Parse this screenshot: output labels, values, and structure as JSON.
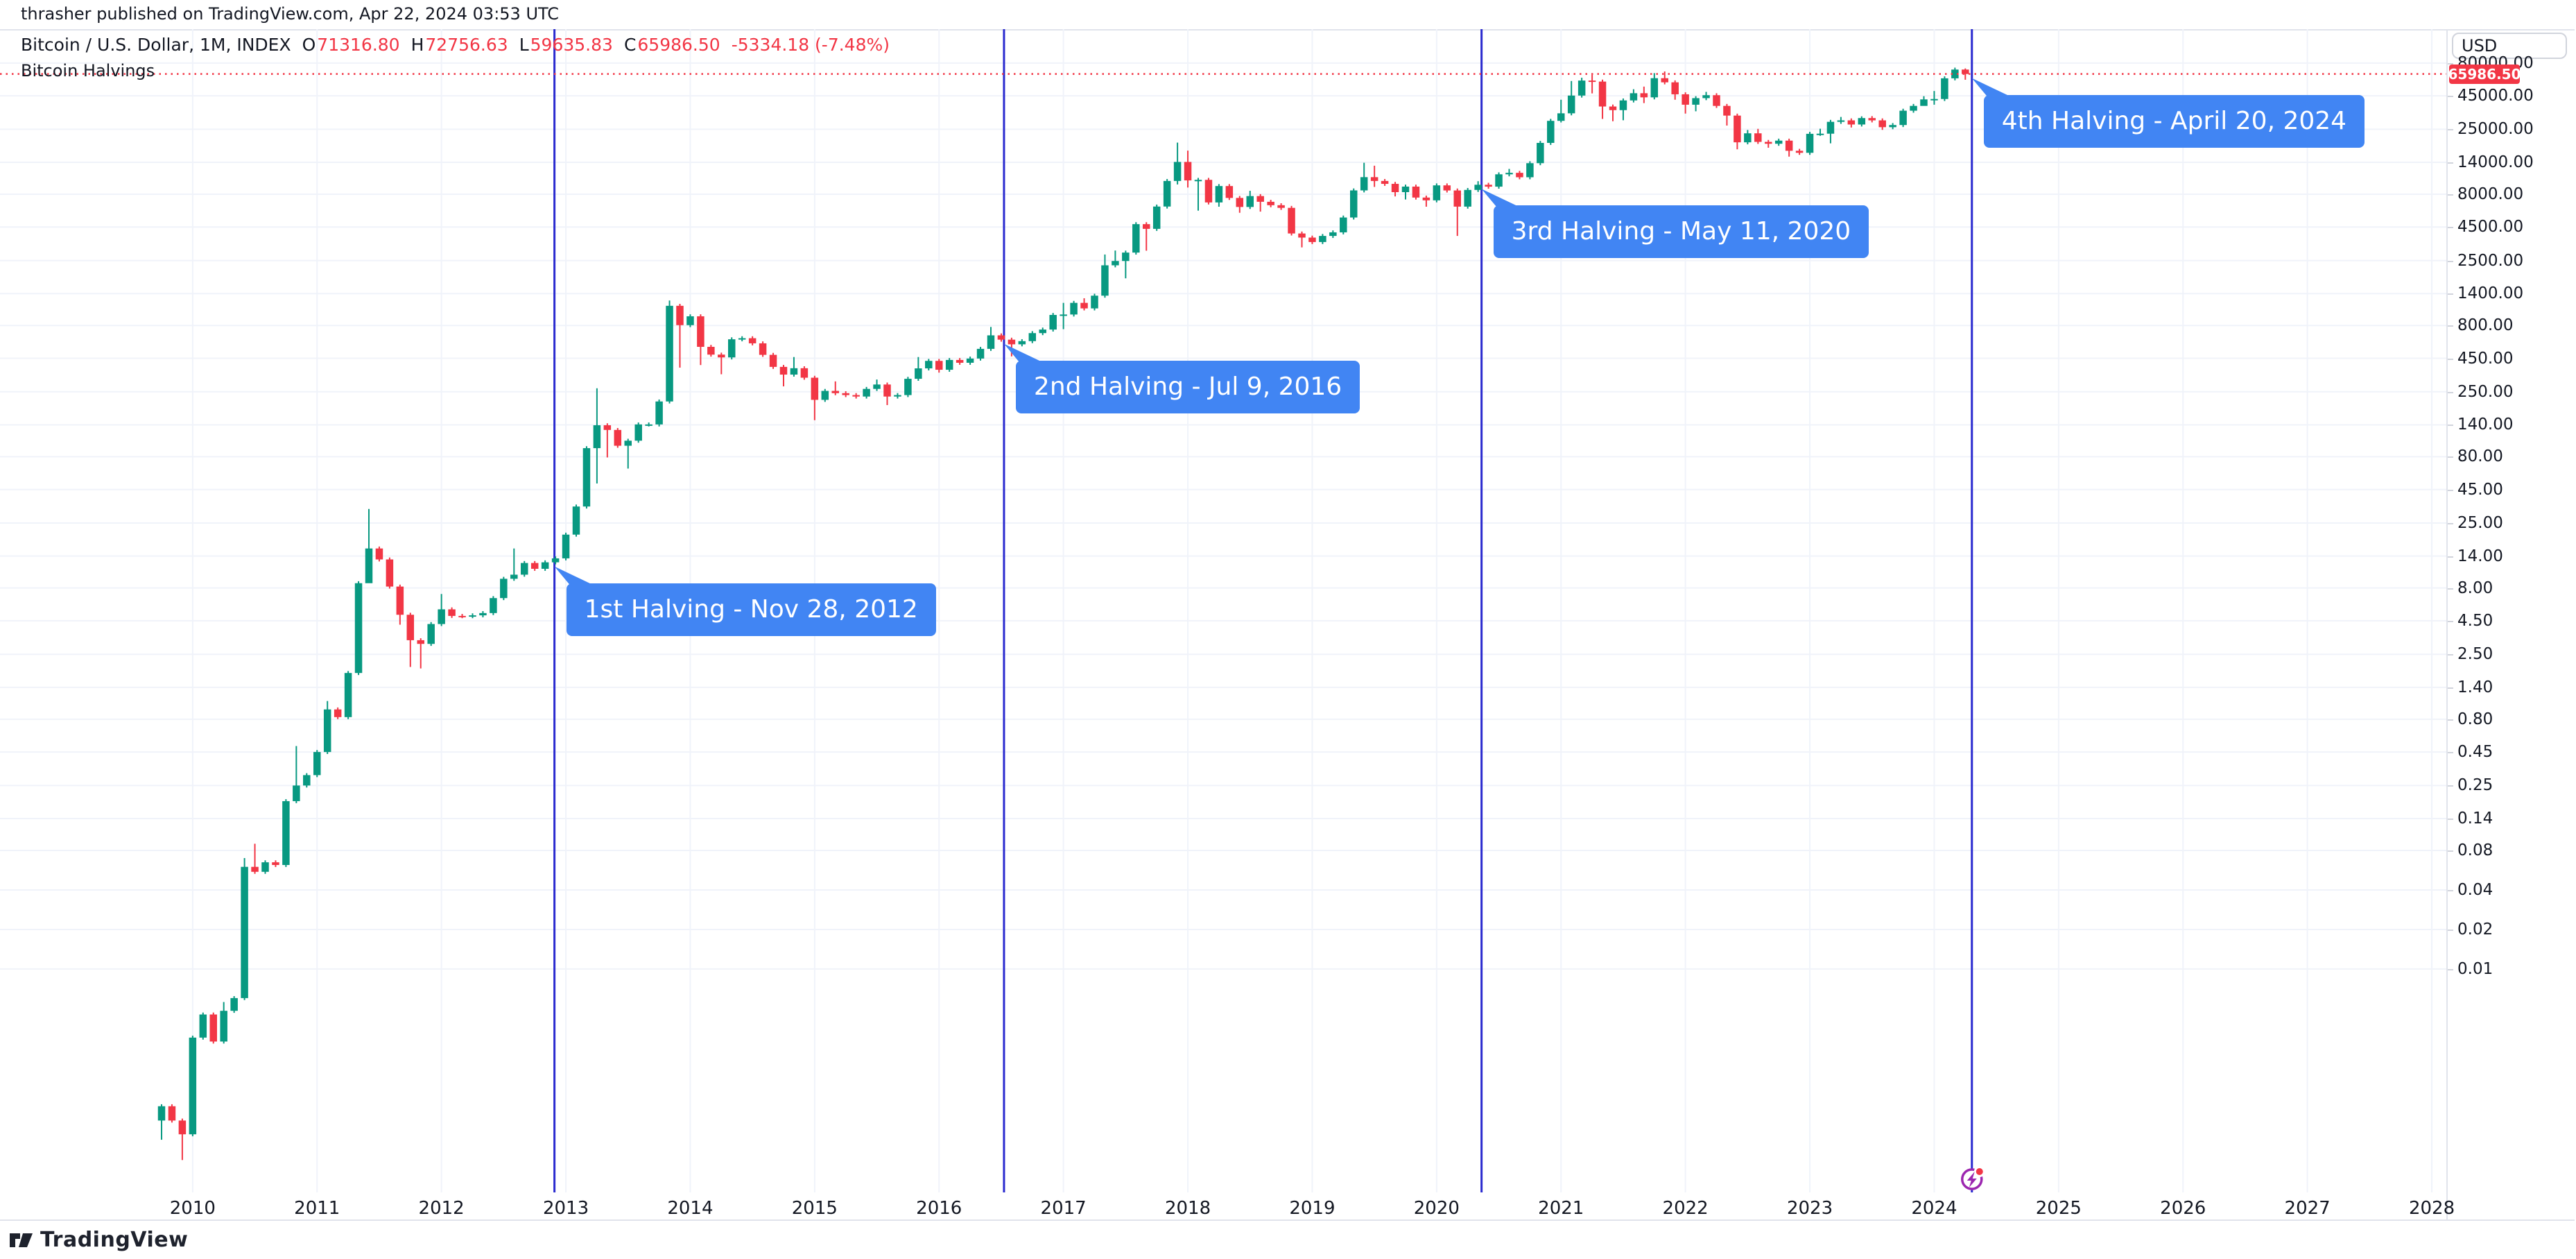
{
  "header": {
    "published_line": "thrasher published on TradingView.com, Apr 22, 2024 03:53 UTC",
    "symbol_title": "Bitcoin / U.S. Dollar, 1M, INDEX",
    "ohlc": {
      "open_label": "O",
      "open": "71316.80",
      "high_label": "H",
      "high": "72756.63",
      "low_label": "L",
      "low": "59635.83",
      "close_label": "C",
      "close": "65986.50",
      "change": "-5334.18 (-7.48%)"
    },
    "indicator_label": "Bitcoin Halvings"
  },
  "price_axis": {
    "currency_button": "USD",
    "last_price_label": "65986.50",
    "ticks": [
      {
        "label": "80000.00",
        "value": 80000
      },
      {
        "label": "45000.00",
        "value": 45000
      },
      {
        "label": "25000.00",
        "value": 25000
      },
      {
        "label": "14000.00",
        "value": 14000
      },
      {
        "label": "8000.00",
        "value": 8000
      },
      {
        "label": "4500.00",
        "value": 4500
      },
      {
        "label": "2500.00",
        "value": 2500
      },
      {
        "label": "1400.00",
        "value": 1400
      },
      {
        "label": "800.00",
        "value": 800
      },
      {
        "label": "450.00",
        "value": 450
      },
      {
        "label": "250.00",
        "value": 250
      },
      {
        "label": "140.00",
        "value": 140
      },
      {
        "label": "80.00",
        "value": 80
      },
      {
        "label": "45.00",
        "value": 45
      },
      {
        "label": "25.00",
        "value": 25
      },
      {
        "label": "14.00",
        "value": 14
      },
      {
        "label": "8.00",
        "value": 8
      },
      {
        "label": "4.50",
        "value": 4.5
      },
      {
        "label": "2.50",
        "value": 2.5
      },
      {
        "label": "1.40",
        "value": 1.4
      },
      {
        "label": "0.80",
        "value": 0.8
      },
      {
        "label": "0.45",
        "value": 0.45
      },
      {
        "label": "0.25",
        "value": 0.25
      },
      {
        "label": "0.14",
        "value": 0.14
      },
      {
        "label": "0.08",
        "value": 0.08
      },
      {
        "label": "0.04",
        "value": 0.04
      },
      {
        "label": "0.02",
        "value": 0.02
      },
      {
        "label": "0.01",
        "value": 0.01
      }
    ]
  },
  "time_axis": {
    "years": [
      {
        "label": "2010",
        "year": 2010
      },
      {
        "label": "2011",
        "year": 2011
      },
      {
        "label": "2012",
        "year": 2012
      },
      {
        "label": "2013",
        "year": 2013
      },
      {
        "label": "2014",
        "year": 2014
      },
      {
        "label": "2015",
        "year": 2015
      },
      {
        "label": "2016",
        "year": 2016
      },
      {
        "label": "2017",
        "year": 2017
      },
      {
        "label": "2018",
        "year": 2018
      },
      {
        "label": "2019",
        "year": 2019
      },
      {
        "label": "2020",
        "year": 2020
      },
      {
        "label": "2021",
        "year": 2021
      },
      {
        "label": "2022",
        "year": 2022
      },
      {
        "label": "2023",
        "year": 2023
      },
      {
        "label": "2024",
        "year": 2024
      },
      {
        "label": "2025",
        "year": 2025
      },
      {
        "label": "2026",
        "year": 2026
      },
      {
        "label": "2027",
        "year": 2027
      },
      {
        "label": "2028",
        "year": 2028
      }
    ]
  },
  "annotations": [
    {
      "label": "1st Halving - Nov 28, 2012",
      "date": "2012-11-28",
      "anchor_price": 12.55
    },
    {
      "label": "2nd Halving - Jul 9, 2016",
      "date": "2016-07-09",
      "anchor_price": 624
    },
    {
      "label": "3rd Halving - May 11, 2020",
      "date": "2020-05-11",
      "anchor_price": 9450
    },
    {
      "label": "4th Halving - April 20, 2024",
      "date": "2024-04-20",
      "anchor_price": 65986.5
    }
  ],
  "branding": {
    "logo_text": "TradingView"
  },
  "colors": {
    "up": "#089981",
    "down": "#F23645",
    "halving_line": "#2A2ACF",
    "callout_bg": "#4185F3",
    "grid": "#F0F3FA",
    "axis_border": "#E0E3EB",
    "text": "#131722",
    "price_badge_bg": "#F23645",
    "price_line": "#F23645",
    "event_icon": "#9C27B0",
    "event_dot": "#F23645",
    "logo_color": "#1E222D"
  },
  "chart_data": {
    "type": "candlestick",
    "title": "Bitcoin / U.S. Dollar, 1M, INDEX",
    "y_scale": "log",
    "ylim": [
      0.0003,
      100000
    ],
    "x_range": [
      "2009-10",
      "2028-12"
    ],
    "grid": true,
    "last_price": 65986.5,
    "halving_events": [
      "2012-11-28",
      "2016-07-09",
      "2020-05-11",
      "2024-04-20"
    ],
    "candles_format": "[month, close, high_or_null, low_or_null, open_or_null(default prev close)]",
    "candles": [
      [
        "2009-10",
        0.0009,
        null,
        0.0005,
        0.0007
      ],
      [
        "2009-11",
        0.0007
      ],
      [
        "2009-12",
        0.00055,
        null,
        0.00035
      ],
      [
        "2010-01",
        0.003
      ],
      [
        "2010-02",
        0.0045
      ],
      [
        "2010-03",
        0.0028
      ],
      [
        "2010-04",
        0.0048,
        0.0056
      ],
      [
        "2010-05",
        0.006
      ],
      [
        "2010-06",
        0.06,
        0.07
      ],
      [
        "2010-07",
        0.055,
        0.09
      ],
      [
        "2010-08",
        0.065
      ],
      [
        "2010-09",
        0.062
      ],
      [
        "2010-10",
        0.19
      ],
      [
        "2010-11",
        0.25,
        0.5
      ],
      [
        "2010-12",
        0.3
      ],
      [
        "2011-01",
        0.45
      ],
      [
        "2011-02",
        0.95,
        1.1
      ],
      [
        "2011-03",
        0.83
      ],
      [
        "2011-04",
        1.8
      ],
      [
        "2011-05",
        8.7
      ],
      [
        "2011-06",
        16,
        32,
        14.5
      ],
      [
        "2011-07",
        13.2
      ],
      [
        "2011-08",
        8.2
      ],
      [
        "2011-09",
        5,
        null,
        4.2
      ],
      [
        "2011-10",
        3.2,
        null,
        2.0
      ],
      [
        "2011-11",
        3.0,
        null,
        1.95
      ],
      [
        "2011-12",
        4.25
      ],
      [
        "2012-01",
        5.5,
        7.2
      ],
      [
        "2012-02",
        4.9
      ],
      [
        "2012-03",
        4.88
      ],
      [
        "2012-04",
        4.95
      ],
      [
        "2012-05",
        5.15
      ],
      [
        "2012-06",
        6.7
      ],
      [
        "2012-07",
        9.4
      ],
      [
        "2012-08",
        10.1,
        16
      ],
      [
        "2012-09",
        12.4
      ],
      [
        "2012-10",
        11.2
      ],
      [
        "2012-11",
        12.55
      ],
      [
        "2012-12",
        13.45
      ],
      [
        "2013-01",
        20.4
      ],
      [
        "2013-02",
        33.4
      ],
      [
        "2013-03",
        93
      ],
      [
        "2013-04",
        139,
        266,
        50
      ],
      [
        "2013-05",
        128,
        null,
        79
      ],
      [
        "2013-06",
        97
      ],
      [
        "2013-07",
        106,
        null,
        65
      ],
      [
        "2013-08",
        141
      ],
      [
        "2013-09",
        141
      ],
      [
        "2013-10",
        211
      ],
      [
        "2013-11",
        1130,
        1240
      ],
      [
        "2013-12",
        805,
        null,
        382
      ],
      [
        "2014-01",
        940
      ],
      [
        "2014-02",
        550,
        null,
        400
      ],
      [
        "2014-03",
        480
      ],
      [
        "2014-04",
        457,
        null,
        340
      ],
      [
        "2014-05",
        628
      ],
      [
        "2014-06",
        640
      ],
      [
        "2014-07",
        585
      ],
      [
        "2014-08",
        478
      ],
      [
        "2014-09",
        387
      ],
      [
        "2014-10",
        338,
        null,
        275
      ],
      [
        "2014-11",
        378,
        460
      ],
      [
        "2014-12",
        320
      ],
      [
        "2015-01",
        217,
        null,
        152
      ],
      [
        "2015-02",
        254
      ],
      [
        "2015-03",
        244,
        300
      ],
      [
        "2015-04",
        236
      ],
      [
        "2015-05",
        230
      ],
      [
        "2015-06",
        263
      ],
      [
        "2015-07",
        284,
        310
      ],
      [
        "2015-08",
        230,
        null,
        198
      ],
      [
        "2015-09",
        236
      ],
      [
        "2015-10",
        314
      ],
      [
        "2015-11",
        377,
        460
      ],
      [
        "2015-12",
        430
      ],
      [
        "2016-01",
        368,
        null,
        350
      ],
      [
        "2016-02",
        437
      ],
      [
        "2016-03",
        416
      ],
      [
        "2016-04",
        448
      ],
      [
        "2016-05",
        531
      ],
      [
        "2016-06",
        673,
        780
      ],
      [
        "2016-07",
        624
      ],
      [
        "2016-08",
        575,
        null,
        465
      ],
      [
        "2016-09",
        608
      ],
      [
        "2016-10",
        700
      ],
      [
        "2016-11",
        745
      ],
      [
        "2016-12",
        963
      ],
      [
        "2017-01",
        970,
        1190,
        750
      ],
      [
        "2017-02",
        1190
      ],
      [
        "2017-03",
        1080,
        1290
      ],
      [
        "2017-04",
        1350
      ],
      [
        "2017-05",
        2300,
        2780
      ],
      [
        "2017-06",
        2480,
        2980
      ],
      [
        "2017-07",
        2875,
        null,
        1830
      ],
      [
        "2017-08",
        4735
      ],
      [
        "2017-09",
        4360,
        null,
        2970
      ],
      [
        "2017-10",
        6450
      ],
      [
        "2017-11",
        10100
      ],
      [
        "2017-12",
        14100,
        19800,
        9500
      ],
      [
        "2018-01",
        10200,
        17200,
        9000
      ],
      [
        "2018-02",
        10300,
        null,
        6000
      ],
      [
        "2018-03",
        6930
      ],
      [
        "2018-04",
        9240,
        null,
        6430
      ],
      [
        "2018-05",
        7500
      ],
      [
        "2018-06",
        6400,
        null,
        5780
      ],
      [
        "2018-07",
        7750,
        8500
      ],
      [
        "2018-08",
        7010,
        null,
        5900
      ],
      [
        "2018-09",
        6600
      ],
      [
        "2018-10",
        6300
      ],
      [
        "2018-11",
        4020
      ],
      [
        "2018-12",
        3740,
        null,
        3150
      ],
      [
        "2019-01",
        3460
      ],
      [
        "2019-02",
        3850
      ],
      [
        "2019-03",
        4100
      ],
      [
        "2019-04",
        5320
      ],
      [
        "2019-05",
        8560
      ],
      [
        "2019-06",
        10800,
        13900
      ],
      [
        "2019-07",
        10100,
        13200,
        9100
      ],
      [
        "2019-08",
        9600
      ],
      [
        "2019-09",
        8300,
        null,
        7700
      ],
      [
        "2019-10",
        9150,
        null,
        7300
      ],
      [
        "2019-11",
        7550
      ],
      [
        "2019-12",
        7190,
        null,
        6430
      ],
      [
        "2020-01",
        9350
      ],
      [
        "2020-02",
        8550
      ],
      [
        "2020-03",
        6440,
        null,
        3850
      ],
      [
        "2020-04",
        8630
      ],
      [
        "2020-05",
        9450,
        10060
      ],
      [
        "2020-06",
        9140
      ],
      [
        "2020-07",
        11350
      ],
      [
        "2020-08",
        11650,
        12480
      ],
      [
        "2020-09",
        10780
      ],
      [
        "2020-10",
        13800
      ],
      [
        "2020-11",
        19700
      ],
      [
        "2020-12",
        29000
      ],
      [
        "2021-01",
        33100,
        42000,
        28200
      ],
      [
        "2021-02",
        45200,
        58350
      ],
      [
        "2021-03",
        58800,
        61800
      ],
      [
        "2021-04",
        57750,
        64900,
        46950
      ],
      [
        "2021-05",
        37300,
        null,
        30000
      ],
      [
        "2021-06",
        35000,
        null,
        28800
      ],
      [
        "2021-07",
        41500,
        null,
        29300
      ],
      [
        "2021-08",
        47100,
        50500
      ],
      [
        "2021-09",
        43800,
        52900,
        39600
      ],
      [
        "2021-10",
        61300,
        67000
      ],
      [
        "2021-11",
        57000,
        69000
      ],
      [
        "2021-12",
        46200,
        null,
        42000
      ],
      [
        "2022-01",
        38500,
        null,
        32950
      ],
      [
        "2022-02",
        43200,
        null,
        34300
      ],
      [
        "2022-03",
        45500,
        48200
      ],
      [
        "2022-04",
        37700
      ],
      [
        "2022-05",
        31800,
        null,
        26700
      ],
      [
        "2022-06",
        19900,
        null,
        17600
      ],
      [
        "2022-07",
        23300,
        24700
      ],
      [
        "2022-08",
        20050,
        25200
      ],
      [
        "2022-09",
        19400,
        null,
        18100
      ],
      [
        "2022-10",
        20500
      ],
      [
        "2022-11",
        17150,
        null,
        15480
      ],
      [
        "2022-12",
        16550
      ],
      [
        "2023-01",
        23100
      ],
      [
        "2023-02",
        23150,
        25250
      ],
      [
        "2023-03",
        28500,
        null,
        19550
      ],
      [
        "2023-04",
        29250,
        31050
      ],
      [
        "2023-05",
        27200,
        null,
        25800
      ],
      [
        "2023-06",
        30450,
        31400
      ],
      [
        "2023-07",
        29250
      ],
      [
        "2023-08",
        25950,
        null,
        24750
      ],
      [
        "2023-09",
        26950
      ],
      [
        "2023-10",
        34650
      ],
      [
        "2023-11",
        37700
      ],
      [
        "2023-12",
        42250,
        44700,
        38150
      ],
      [
        "2024-01",
        42550,
        48950,
        38500
      ],
      [
        "2024-02",
        61150
      ],
      [
        "2024-03",
        71300,
        73750,
        59000
      ],
      [
        "2024-04",
        65986.5,
        72756.63,
        59635.83,
        71316.8
      ]
    ]
  }
}
